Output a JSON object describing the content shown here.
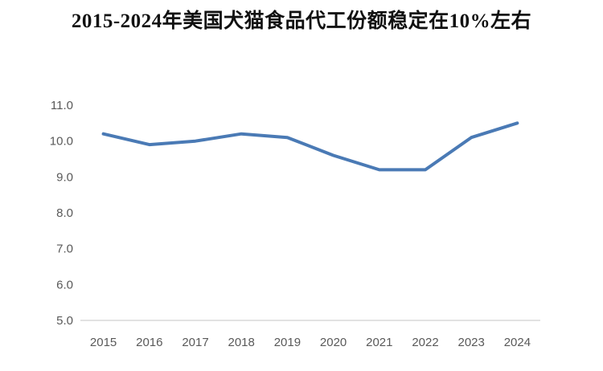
{
  "title": "2015-2024年美国犬猫食品代工份额稳定在10%左右",
  "colors": {
    "line": "#4a7ab5",
    "axis_line": "#d9d9d9",
    "tick_text": "#595959",
    "title_text": "#111111",
    "background": "#ffffff"
  },
  "chart_data": {
    "type": "line",
    "title": "2015-2024年美国犬猫食品代工份额稳定在10%左右",
    "categories": [
      "2015",
      "2016",
      "2017",
      "2018",
      "2019",
      "2020",
      "2021",
      "2022",
      "2023",
      "2024"
    ],
    "values": [
      10.2,
      9.9,
      10.0,
      10.2,
      10.1,
      9.6,
      9.2,
      9.2,
      10.1,
      10.5
    ],
    "xlabel": "",
    "ylabel": "",
    "ylim": [
      5.0,
      11.0
    ],
    "ytick_labels": [
      "5.0",
      "6.0",
      "7.0",
      "8.0",
      "9.0",
      "10.0",
      "11.0"
    ],
    "grid": false,
    "legend": "none"
  }
}
